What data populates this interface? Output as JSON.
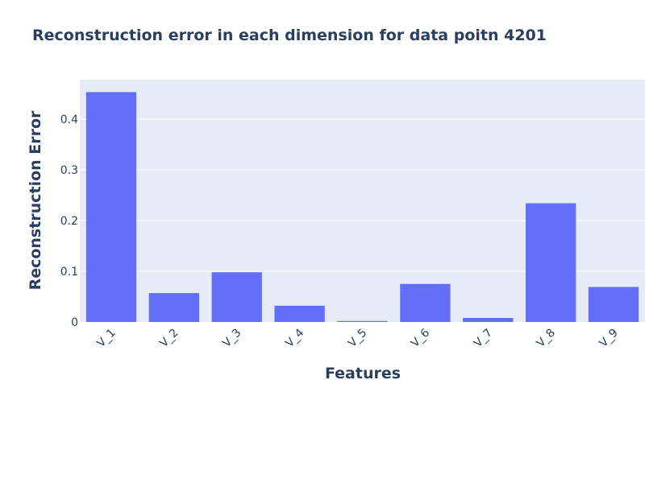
{
  "chart_data": {
    "type": "bar",
    "title": "Reconstruction error in each dimension for data poitn 4201",
    "xlabel": "Features",
    "ylabel": "Reconstruction Error",
    "categories": [
      "V_1",
      "V_2",
      "V_3",
      "V_4",
      "V_5",
      "V_6",
      "V_7",
      "V_8",
      "V_9"
    ],
    "values": [
      0.453,
      0.057,
      0.098,
      0.032,
      0.002,
      0.075,
      0.008,
      0.234,
      0.069
    ],
    "ylim": [
      0,
      0.4775
    ],
    "yticks": [
      0,
      0.1,
      0.2,
      0.3,
      0.4
    ],
    "ytick_labels": [
      "0",
      "0.1",
      "0.2",
      "0.3",
      "0.4"
    ],
    "grid": true,
    "colors": {
      "bar": "#636efa",
      "plot_bg": "#e5ecf6",
      "grid": "#ffffff",
      "text": "#2a3f5f"
    }
  }
}
